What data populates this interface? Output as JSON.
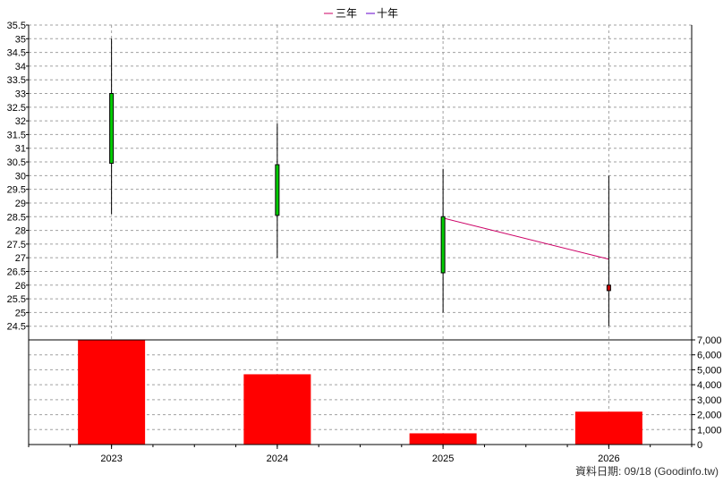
{
  "legend": [
    {
      "label": "三年",
      "color": "#cc0066"
    },
    {
      "label": "十年",
      "color": "#6600cc"
    }
  ],
  "footer": "資料日期: 09/18  (Goodinfo.tw)",
  "chart_data": {
    "type": "candlestick+bar",
    "categories": [
      "2023",
      "2024",
      "2025",
      "2026"
    ],
    "price": {
      "ylim": [
        24,
        35.5
      ],
      "ticks": [
        24.5,
        25,
        25.5,
        26,
        26.5,
        27,
        27.5,
        28,
        28.5,
        29,
        29.5,
        30,
        30.5,
        31,
        31.5,
        32,
        32.5,
        33,
        33.5,
        34,
        34.5,
        35,
        35.5
      ],
      "candles": [
        {
          "x": "2023",
          "open": 30.45,
          "close": 33.0,
          "high": 35.0,
          "low": 28.6,
          "color": "#00cc00"
        },
        {
          "x": "2024",
          "open": 28.55,
          "close": 30.4,
          "high": 31.9,
          "low": 27.0,
          "color": "#00cc00"
        },
        {
          "x": "2025",
          "open": 26.45,
          "close": 28.5,
          "high": 30.25,
          "low": 25.0,
          "color": "#00cc00"
        },
        {
          "x": "2026",
          "open": 26.0,
          "close": 25.8,
          "high": 30.0,
          "low": 24.5,
          "color": "#cc0000"
        }
      ],
      "lines": [
        {
          "name": "三年",
          "color": "#cc0066",
          "points": [
            {
              "x": "2025",
              "y": 28.45
            },
            {
              "x": "2026",
              "y": 26.95
            }
          ]
        }
      ]
    },
    "volume": {
      "ylim": [
        0,
        7000
      ],
      "ticks": [
        0,
        1000,
        2000,
        3000,
        4000,
        5000,
        6000,
        7000
      ],
      "tick_labels": [
        "0",
        "1,000",
        "2,000",
        "3,000",
        "4,000",
        "5,000",
        "6,000",
        "7,000"
      ],
      "values": [
        7000,
        4700,
        750,
        2200
      ],
      "color": "#ff0000"
    }
  }
}
